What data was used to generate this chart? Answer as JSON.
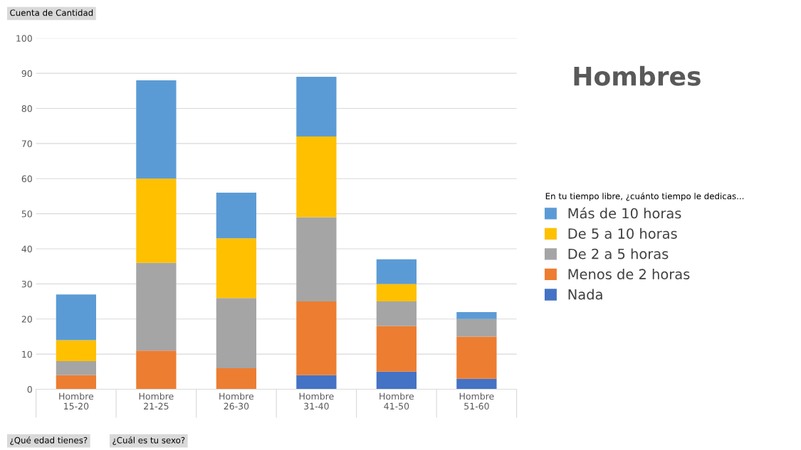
{
  "chart_data": {
    "type": "bar",
    "stacked": true,
    "title": "Hombres",
    "legend_title": "En tu tiempo libre, ¿cuánto tiempo le dedicas...",
    "categories": [
      "Hombre\n15-20",
      "Hombre\n21-25",
      "Hombre\n26-30",
      "Hombre\n31-40",
      "Hombre\n41-50",
      "Hombre\n51-60"
    ],
    "series": [
      {
        "name": "Nada",
        "color": "#4472c4",
        "values": [
          0,
          0,
          0,
          4,
          5,
          3
        ]
      },
      {
        "name": "Menos de 2 horas",
        "color": "#ed7d31",
        "values": [
          4,
          11,
          6,
          21,
          13,
          12
        ]
      },
      {
        "name": "De 2 a 5 horas",
        "color": "#a5a5a5",
        "values": [
          4,
          25,
          20,
          24,
          7,
          5
        ]
      },
      {
        "name": "De 5 a 10 horas",
        "color": "#ffc000",
        "values": [
          6,
          24,
          17,
          23,
          5,
          0
        ]
      },
      {
        "name": "Más de 10 horas",
        "color": "#5b9bd5",
        "values": [
          13,
          28,
          13,
          17,
          7,
          2
        ]
      }
    ],
    "ylim": [
      0,
      100
    ],
    "yticks": [
      0,
      10,
      20,
      30,
      40,
      50,
      60,
      70,
      80,
      90,
      100
    ],
    "grid": "y",
    "legend": "right",
    "annotations": [
      "Cuenta de Cantidad",
      "¿Qué edad tienes?",
      "¿Cuál es tu sexo?"
    ]
  }
}
